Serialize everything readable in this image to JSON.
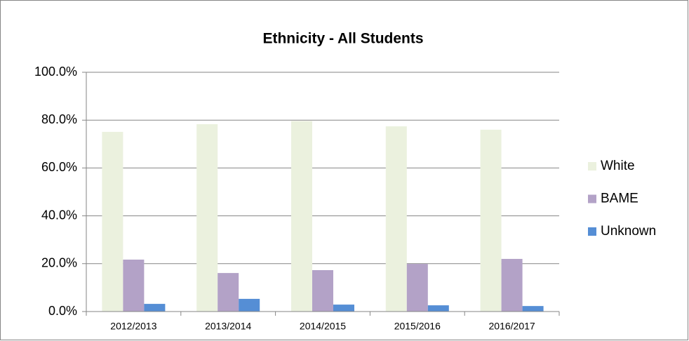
{
  "chart_data": {
    "type": "bar",
    "title": "Ethnicity - All Students",
    "categories": [
      "2012/2013",
      "2013/2014",
      "2014/2015",
      "2015/2016",
      "2016/2017"
    ],
    "series": [
      {
        "name": "White",
        "color": "#ebf1de",
        "values": [
          75.1,
          78.3,
          79.6,
          77.4,
          76.0
        ]
      },
      {
        "name": "BAME",
        "color": "#b3a2c7",
        "values": [
          21.7,
          16.1,
          17.3,
          19.9,
          22.0
        ]
      },
      {
        "name": "Unknown",
        "color": "#558ed5",
        "values": [
          3.2,
          5.3,
          2.9,
          2.6,
          2.3
        ]
      }
    ],
    "ylim": [
      0,
      100
    ],
    "yticks": [
      {
        "value": 0,
        "label": "0.0%"
      },
      {
        "value": 20,
        "label": "20.0%"
      },
      {
        "value": 40,
        "label": "40.0%"
      },
      {
        "value": 60,
        "label": "60.0%"
      },
      {
        "value": 80,
        "label": "80.0%"
      },
      {
        "value": 100,
        "label": "100.0%"
      }
    ],
    "grid": true,
    "legend": "right"
  }
}
